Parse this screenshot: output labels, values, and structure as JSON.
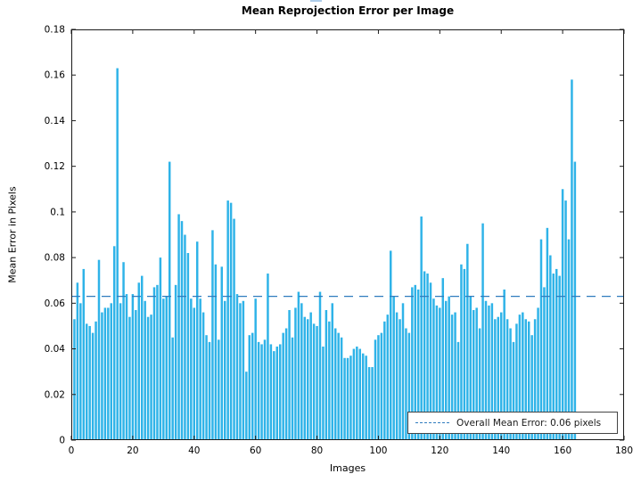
{
  "figure": {
    "title": "Mean Reprojection Error per Image",
    "xlabel": "Images",
    "ylabel": "Mean Error in Pixels",
    "legend_label": "Overall Mean Error: 0.06 pixels"
  },
  "chart_data": {
    "type": "bar",
    "title": "Mean Reprojection Error per Image",
    "xlabel": "Images",
    "ylabel": "Mean Error in Pixels",
    "xlim": [
      0,
      180
    ],
    "ylim": [
      0,
      0.18
    ],
    "xticks": [
      "0",
      "20",
      "40",
      "60",
      "80",
      "100",
      "120",
      "140",
      "160",
      "180"
    ],
    "yticks": [
      "0",
      "0.02",
      "0.04",
      "0.06",
      "0.08",
      "0.1",
      "0.12",
      "0.14",
      "0.16",
      "0.18"
    ],
    "grid": false,
    "legend_position": "south-east",
    "bar_color": "#2fb3e8",
    "axis_color": "#1a1a1a",
    "mean_line": {
      "value": 0.063,
      "label": "Overall Mean Error: 0.06 pixels",
      "color": "#2f7cbe",
      "style": "dashed"
    },
    "x_start_index": 1,
    "values": [
      0.053,
      0.069,
      0.06,
      0.075,
      0.051,
      0.05,
      0.047,
      0.052,
      0.079,
      0.056,
      0.058,
      0.058,
      0.06,
      0.085,
      0.163,
      0.06,
      0.078,
      0.064,
      0.054,
      0.064,
      0.057,
      0.069,
      0.072,
      0.061,
      0.054,
      0.055,
      0.067,
      0.068,
      0.08,
      0.062,
      0.063,
      0.122,
      0.045,
      0.068,
      0.099,
      0.096,
      0.09,
      0.082,
      0.062,
      0.058,
      0.087,
      0.062,
      0.056,
      0.046,
      0.043,
      0.092,
      0.077,
      0.044,
      0.076,
      0.061,
      0.105,
      0.104,
      0.097,
      0.064,
      0.06,
      0.061,
      0.03,
      0.046,
      0.047,
      0.062,
      0.043,
      0.042,
      0.044,
      0.073,
      0.042,
      0.039,
      0.041,
      0.042,
      0.047,
      0.049,
      0.057,
      0.045,
      0.058,
      0.065,
      0.06,
      0.054,
      0.053,
      0.056,
      0.051,
      0.05,
      0.065,
      0.041,
      0.057,
      0.052,
      0.06,
      0.049,
      0.047,
      0.045,
      0.036,
      0.036,
      0.037,
      0.04,
      0.041,
      0.04,
      0.038,
      0.037,
      0.032,
      0.032,
      0.044,
      0.046,
      0.047,
      0.052,
      0.055,
      0.083,
      0.063,
      0.056,
      0.053,
      0.06,
      0.049,
      0.047,
      0.067,
      0.068,
      0.066,
      0.098,
      0.074,
      0.073,
      0.069,
      0.062,
      0.059,
      0.058,
      0.071,
      0.061,
      0.063,
      0.055,
      0.056,
      0.043,
      0.077,
      0.075,
      0.086,
      0.063,
      0.057,
      0.058,
      0.049,
      0.095,
      0.061,
      0.059,
      0.06,
      0.053,
      0.054,
      0.056,
      0.066,
      0.053,
      0.049,
      0.043,
      0.051,
      0.055,
      0.056,
      0.053,
      0.052,
      0.046,
      0.053,
      0.058,
      0.088,
      0.067,
      0.093,
      0.081,
      0.073,
      0.075,
      0.072,
      0.11,
      0.105,
      0.088,
      0.158,
      0.122
    ]
  }
}
